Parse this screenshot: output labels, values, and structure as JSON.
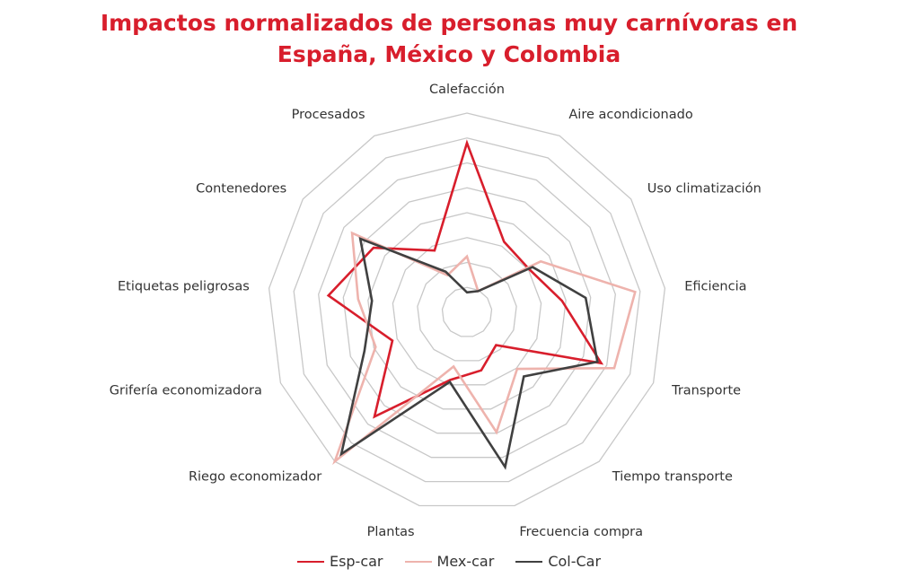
{
  "chart_data": {
    "type": "radar",
    "title_lines": [
      "Impactos normalizados de personas muy carnívoras en",
      "España, México y Colombia"
    ],
    "title_color": "#d81e2c",
    "axes": [
      "Calefacción",
      "Aire acondicionado",
      "Uso climatización",
      "Eficiencia",
      "Transporte",
      "Tiempo transporte",
      "Frecuencia compra",
      "Plantas",
      "Riego economizador",
      "Grifería economizadora",
      "Etiquetas peligrosas",
      "Contenedores",
      "Procesados"
    ],
    "range": [
      0,
      1
    ],
    "rings": 8,
    "grid_color": "#c8c8c8",
    "legend_position": "bottom",
    "series": [
      {
        "name": "Esp-car",
        "color": "#d81e2c",
        "values": [
          0.85,
          0.4,
          0.38,
          0.48,
          0.72,
          0.22,
          0.3,
          0.35,
          0.7,
          0.4,
          0.7,
          0.57,
          0.35
        ]
      },
      {
        "name": "Mex-car",
        "color": "#eeb3ad",
        "values": [
          0.28,
          0.12,
          0.45,
          0.85,
          0.79,
          0.38,
          0.62,
          0.28,
          1.0,
          0.49,
          0.55,
          0.7,
          0.21
        ]
      },
      {
        "name": "Col-Car",
        "color": "#404040",
        "values": [
          0.1,
          0.12,
          0.4,
          0.6,
          0.7,
          0.43,
          0.8,
          0.36,
          0.95,
          0.55,
          0.48,
          0.65,
          0.23
        ]
      }
    ]
  }
}
